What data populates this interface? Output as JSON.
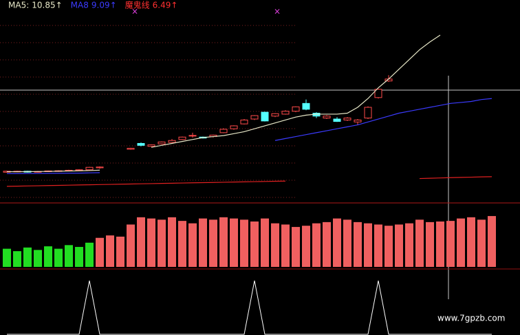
{
  "chart_data": [
    {
      "type": "candlestick",
      "ylim": [
        3.8,
        24.6
      ],
      "open": [
        6.95,
        7.0,
        7.05,
        6.98,
        7.02,
        7.05,
        7.1,
        7.12,
        7.2,
        7.4,
        null,
        null,
        9.3,
        9.9,
        9.6,
        9.85,
        10.0,
        10.3,
        10.7,
        10.55,
        10.6,
        11.0,
        11.4,
        11.9,
        12.4,
        13.1,
        12.7,
        12.9,
        13.2,
        14.0,
        13.0,
        12.5,
        12.4,
        12.3,
        12.1,
        12.5,
        14.6,
        16.3,
        null,
        null,
        null,
        null,
        null,
        null,
        null,
        null,
        null,
        null
      ],
      "high": [
        7.1,
        7.1,
        7.1,
        7.08,
        7.12,
        7.15,
        7.2,
        7.25,
        7.5,
        7.55,
        null,
        null,
        9.45,
        10.0,
        9.8,
        10.1,
        10.35,
        10.6,
        11.0,
        10.6,
        10.8,
        11.45,
        11.75,
        12.4,
        12.8,
        13.15,
        13.0,
        13.3,
        13.7,
        14.4,
        13.1,
        12.8,
        12.6,
        12.6,
        12.4,
        13.7,
        15.5,
        16.9,
        null,
        null,
        null,
        null,
        null,
        null,
        null,
        null,
        null,
        null
      ],
      "low": [
        6.9,
        6.95,
        6.9,
        6.93,
        6.97,
        7.0,
        7.05,
        7.08,
        7.15,
        7.3,
        null,
        null,
        9.25,
        9.6,
        9.55,
        9.8,
        9.95,
        10.25,
        10.5,
        10.4,
        10.5,
        10.95,
        11.3,
        11.85,
        12.3,
        12.15,
        12.6,
        12.85,
        13.1,
        13.3,
        12.5,
        12.4,
        12.1,
        12.2,
        11.8,
        12.4,
        14.5,
        16.2,
        null,
        null,
        null,
        null,
        null,
        null,
        null,
        null,
        null,
        null
      ],
      "close": [
        7.05,
        7.05,
        6.95,
        7.02,
        7.08,
        7.1,
        7.15,
        7.2,
        7.45,
        7.48,
        null,
        null,
        9.4,
        9.7,
        9.75,
        10.05,
        10.2,
        10.55,
        10.72,
        10.45,
        10.75,
        11.35,
        11.7,
        12.3,
        12.75,
        12.2,
        12.95,
        13.2,
        13.65,
        13.4,
        12.7,
        12.7,
        12.15,
        12.5,
        12.3,
        13.6,
        15.45,
        16.5,
        null,
        null,
        null,
        null,
        null,
        null,
        null,
        null,
        null,
        null
      ],
      "series": [
        {
          "name": "MA5:",
          "color": "#e8e8c8",
          "cursor_label": "10.85↑",
          "values": [
            7.0,
            7.0,
            7.01,
            7.02,
            7.03,
            7.05,
            7.07,
            7.09,
            7.12,
            7.16,
            null,
            null,
            null,
            null,
            9.5,
            9.7,
            9.9,
            10.1,
            10.3,
            10.5,
            10.6,
            10.7,
            10.9,
            11.1,
            11.4,
            11.7,
            12.0,
            12.3,
            12.6,
            12.8,
            12.9,
            12.9,
            12.9,
            13.0,
            13.6,
            14.5,
            15.6,
            16.5,
            17.5,
            18.5,
            19.5,
            20.3,
            21.0,
            null,
            null,
            null,
            null,
            null
          ]
        },
        {
          "name": "MA8",
          "color": "#3b3bff",
          "cursor_label": "9.09↑",
          "values": [
            6.8,
            6.8,
            6.81,
            6.82,
            6.83,
            6.84,
            6.85,
            6.86,
            6.88,
            6.9,
            null,
            null,
            null,
            null,
            null,
            null,
            null,
            null,
            null,
            null,
            null,
            null,
            null,
            null,
            null,
            null,
            10.2,
            10.4,
            10.6,
            10.8,
            11.0,
            11.2,
            11.4,
            11.6,
            11.8,
            12.1,
            12.4,
            12.7,
            13.0,
            13.2,
            13.4,
            13.6,
            13.8,
            14.0,
            14.1,
            14.2,
            14.4,
            14.5
          ]
        },
        {
          "name": "魔鬼线",
          "color": "#e02020",
          "cursor_label": "6.49↑",
          "values": [
            5.5,
            5.52,
            5.54,
            5.56,
            5.58,
            5.6,
            5.62,
            5.64,
            5.66,
            5.68,
            5.7,
            5.72,
            5.74,
            5.76,
            5.78,
            5.8,
            5.82,
            5.84,
            5.86,
            5.88,
            5.9,
            5.92,
            5.94,
            5.96,
            5.98,
            6.0,
            6.02,
            6.04,
            null,
            null,
            null,
            null,
            null,
            null,
            null,
            null,
            null,
            null,
            null,
            null,
            6.3,
            6.33,
            6.36,
            6.39,
            6.42,
            6.44,
            6.47,
            6.49
          ]
        }
      ]
    },
    {
      "type": "bar",
      "ylim": [
        0,
        100
      ],
      "values": [
        30,
        26,
        32,
        28,
        34,
        30,
        36,
        33,
        40,
        48,
        52,
        50,
        70,
        82,
        80,
        78,
        82,
        76,
        72,
        80,
        78,
        82,
        80,
        78,
        75,
        80,
        72,
        70,
        66,
        68,
        72,
        74,
        80,
        78,
        74,
        72,
        70,
        68,
        70,
        72,
        78,
        74,
        75,
        76,
        80,
        82,
        78,
        84
      ],
      "colors": [
        "#22dd22",
        "#22dd22",
        "#22dd22",
        "#22dd22",
        "#22dd22",
        "#22dd22",
        "#22dd22",
        "#22dd22",
        "#22dd22",
        "#f06060",
        "#f06060",
        "#f06060",
        "#f06060",
        "#f06060",
        "#f06060",
        "#f06060",
        "#f06060",
        "#f06060",
        "#f06060",
        "#f06060",
        "#f06060",
        "#f06060",
        "#f06060",
        "#f06060",
        "#f06060",
        "#f06060",
        "#f06060",
        "#f06060",
        "#f06060",
        "#f06060",
        "#f06060",
        "#f06060",
        "#f06060",
        "#f06060",
        "#f06060",
        "#f06060",
        "#f06060",
        "#f06060",
        "#f06060",
        "#f06060",
        "#f06060",
        "#f06060",
        "#f06060",
        "#f06060",
        "#f06060",
        "#f06060",
        "#f06060",
        "#f06060"
      ]
    },
    {
      "type": "line",
      "ylim": [
        0,
        100
      ],
      "color": "#ffffff",
      "values": [
        0,
        0,
        0,
        0,
        0,
        0,
        0,
        0,
        100,
        0,
        0,
        0,
        0,
        0,
        0,
        0,
        0,
        0,
        0,
        0,
        0,
        0,
        0,
        0,
        100,
        0,
        0,
        0,
        0,
        0,
        0,
        0,
        0,
        0,
        0,
        0,
        100,
        0,
        0,
        0,
        0,
        0,
        0,
        0,
        0,
        0,
        0,
        0
      ],
      "watermark": "www.7gpzb.com"
    }
  ]
}
